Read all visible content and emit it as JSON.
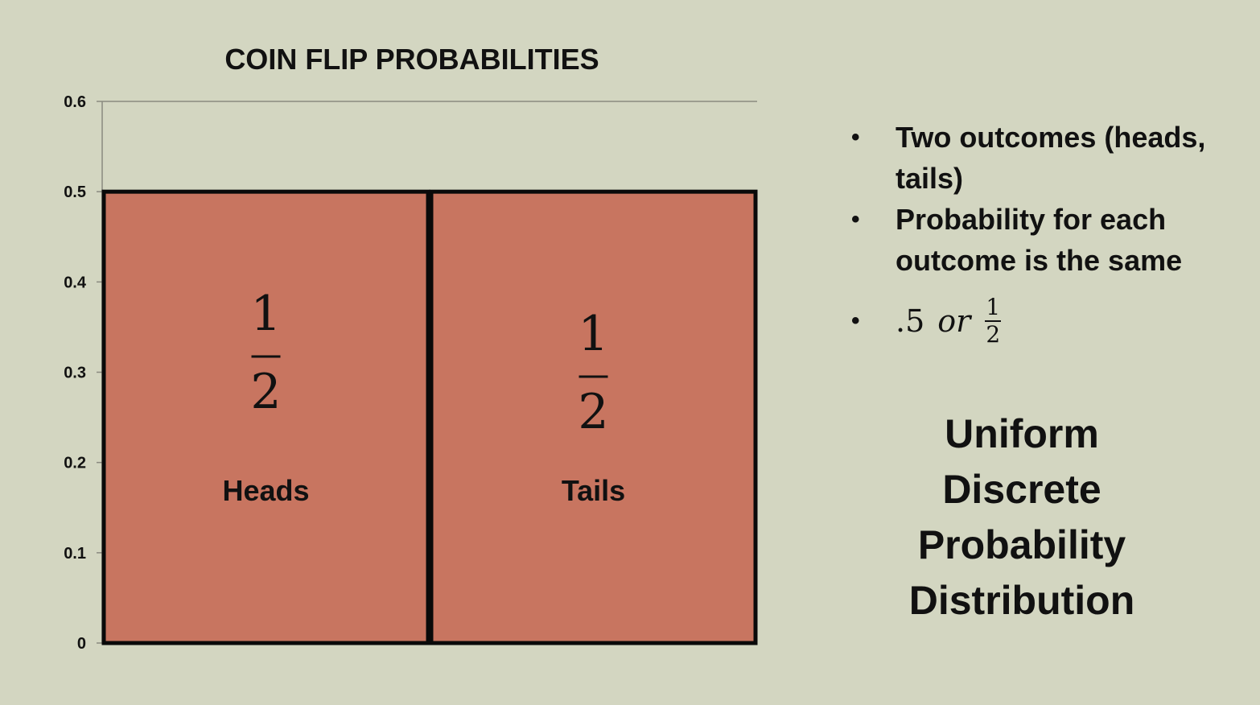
{
  "chart_data": {
    "type": "bar",
    "title": "COIN FLIP PROBABILITIES",
    "categories": [
      "Heads",
      "Tails"
    ],
    "values": [
      0.5,
      0.5
    ],
    "bar_labels": [
      {
        "numerator": "1",
        "denominator": "2"
      },
      {
        "numerator": "1",
        "denominator": "2"
      }
    ],
    "xlabel": "",
    "ylabel": "",
    "ylim": [
      0,
      0.6
    ],
    "yticks": [
      "0",
      "0.1",
      "0.2",
      "0.3",
      "0.4",
      "0.5",
      "0.6"
    ],
    "ytick_values": [
      0,
      0.1,
      0.2,
      0.3,
      0.4,
      0.5,
      0.6
    ],
    "grid": false,
    "legend": "none",
    "bar_color": "#c87560",
    "bar_edge_color": "#0a0a0a"
  },
  "bullets": [
    {
      "text": "Two outcomes (heads, tails)"
    },
    {
      "text": "Probability for each outcome is the same"
    }
  ],
  "math_bullet": {
    "decimal": ".5",
    "word": "or",
    "numerator": "1",
    "denominator": "2"
  },
  "heading_lines": [
    "Uniform",
    "Discrete",
    "Probability",
    "Distribution"
  ]
}
